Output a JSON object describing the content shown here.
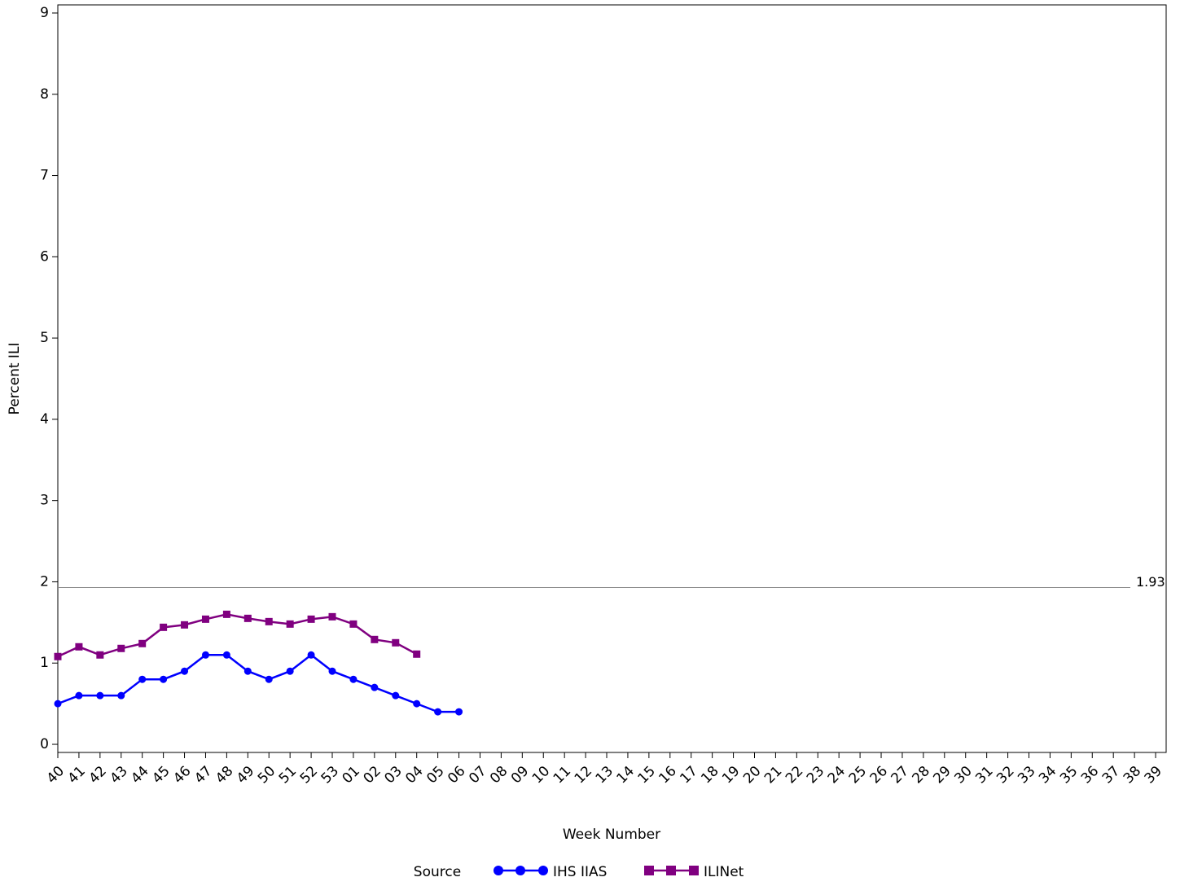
{
  "chart_data": {
    "type": "line",
    "x_label": "Week Number",
    "y_label": "Percent ILI",
    "legend_title": "Source",
    "legend_position": "bottom",
    "categories": [
      "40",
      "41",
      "42",
      "43",
      "44",
      "45",
      "46",
      "47",
      "48",
      "49",
      "50",
      "51",
      "52",
      "53",
      "01",
      "02",
      "03",
      "04",
      "05",
      "06",
      "07",
      "08",
      "09",
      "10",
      "11",
      "12",
      "13",
      "14",
      "15",
      "16",
      "17",
      "18",
      "19",
      "20",
      "21",
      "22",
      "23",
      "24",
      "25",
      "26",
      "27",
      "28",
      "29",
      "30",
      "31",
      "32",
      "33",
      "34",
      "35",
      "36",
      "37",
      "38",
      "39"
    ],
    "series": [
      {
        "name": "IHS IIAS",
        "color": "#0000ff",
        "marker": "circle",
        "values": [
          0.5,
          0.6,
          0.6,
          0.6,
          0.8,
          0.8,
          0.9,
          1.1,
          1.1,
          0.9,
          0.8,
          0.9,
          1.1,
          0.9,
          0.8,
          0.7,
          0.6,
          0.5,
          0.4,
          0.4,
          null,
          null,
          null,
          null,
          null,
          null,
          null,
          null,
          null,
          null,
          null,
          null,
          null,
          null,
          null,
          null,
          null,
          null,
          null,
          null,
          null,
          null,
          null,
          null,
          null,
          null,
          null,
          null,
          null,
          null,
          null,
          null,
          null
        ]
      },
      {
        "name": "ILINet",
        "color": "#800080",
        "marker": "square",
        "values": [
          1.08,
          1.2,
          1.1,
          1.18,
          1.24,
          1.44,
          1.47,
          1.54,
          1.6,
          1.55,
          1.51,
          1.48,
          1.54,
          1.57,
          1.48,
          1.29,
          1.25,
          1.11,
          null,
          null,
          null,
          null,
          null,
          null,
          null,
          null,
          null,
          null,
          null,
          null,
          null,
          null,
          null,
          null,
          null,
          null,
          null,
          null,
          null,
          null,
          null,
          null,
          null,
          null,
          null,
          null,
          null,
          null,
          null,
          null,
          null,
          null,
          null
        ]
      }
    ],
    "reference_line": 1.93,
    "reference_color": "#888888",
    "ylim": [
      -0.1,
      9.1
    ],
    "yticks": [
      0,
      1,
      2,
      3,
      4,
      5,
      6,
      7,
      8,
      9
    ],
    "grid": false
  }
}
